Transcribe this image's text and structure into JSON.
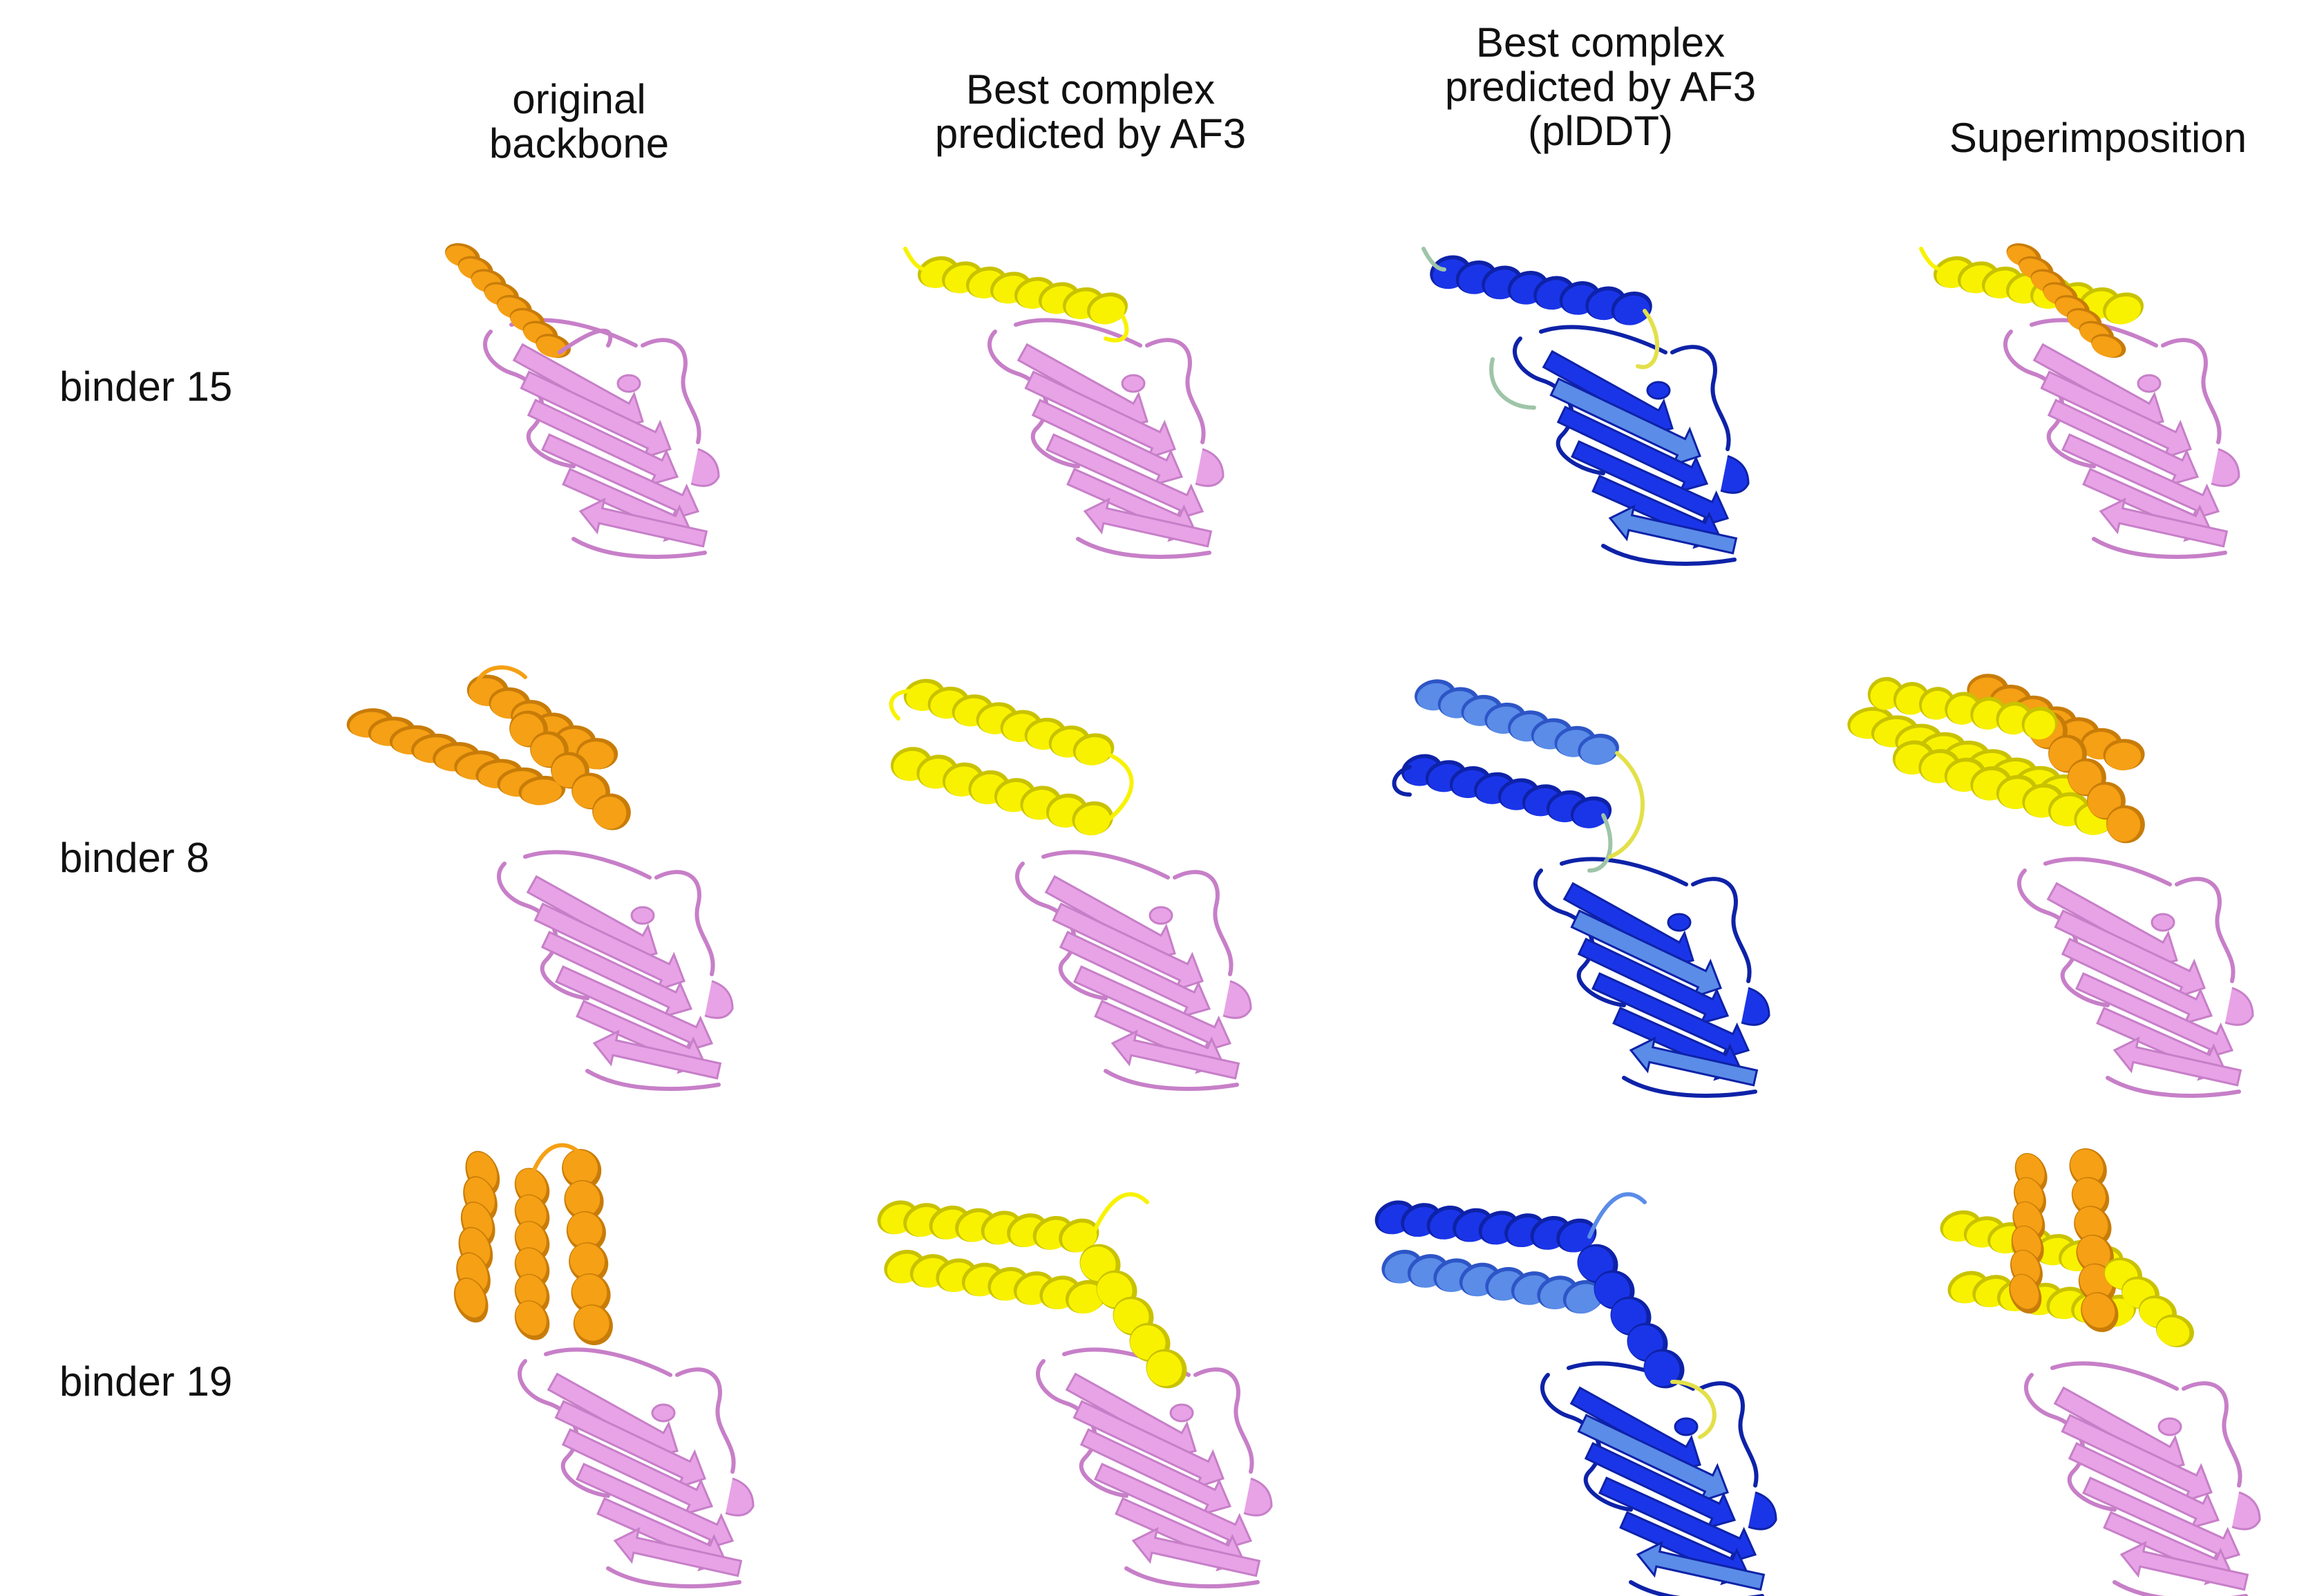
{
  "columns": [
    {
      "lines": [
        "original",
        "backbone"
      ]
    },
    {
      "lines": [
        "Best complex",
        "predicted by AF3"
      ]
    },
    {
      "lines": [
        "Best complex",
        "predicted by AF3",
        "(plDDT)"
      ]
    },
    {
      "lines": [
        "Superimposition"
      ]
    }
  ],
  "rows": [
    {
      "label": "binder 15"
    },
    {
      "label": "binder 8"
    },
    {
      "label": "binder 19"
    }
  ],
  "colors": {
    "target": "#e7a3e6",
    "target_dark": "#c77fc8",
    "original_binder": "#f5a015",
    "original_dark": "#c87c08",
    "predicted_binder": "#f8f200",
    "predicted_dark": "#c9c200",
    "plddt_high": "#1a35e8",
    "plddt_mid": "#5a8ce8",
    "plddt_low": "#9ec5a8",
    "plddt_vlow": "#e3e04a"
  }
}
